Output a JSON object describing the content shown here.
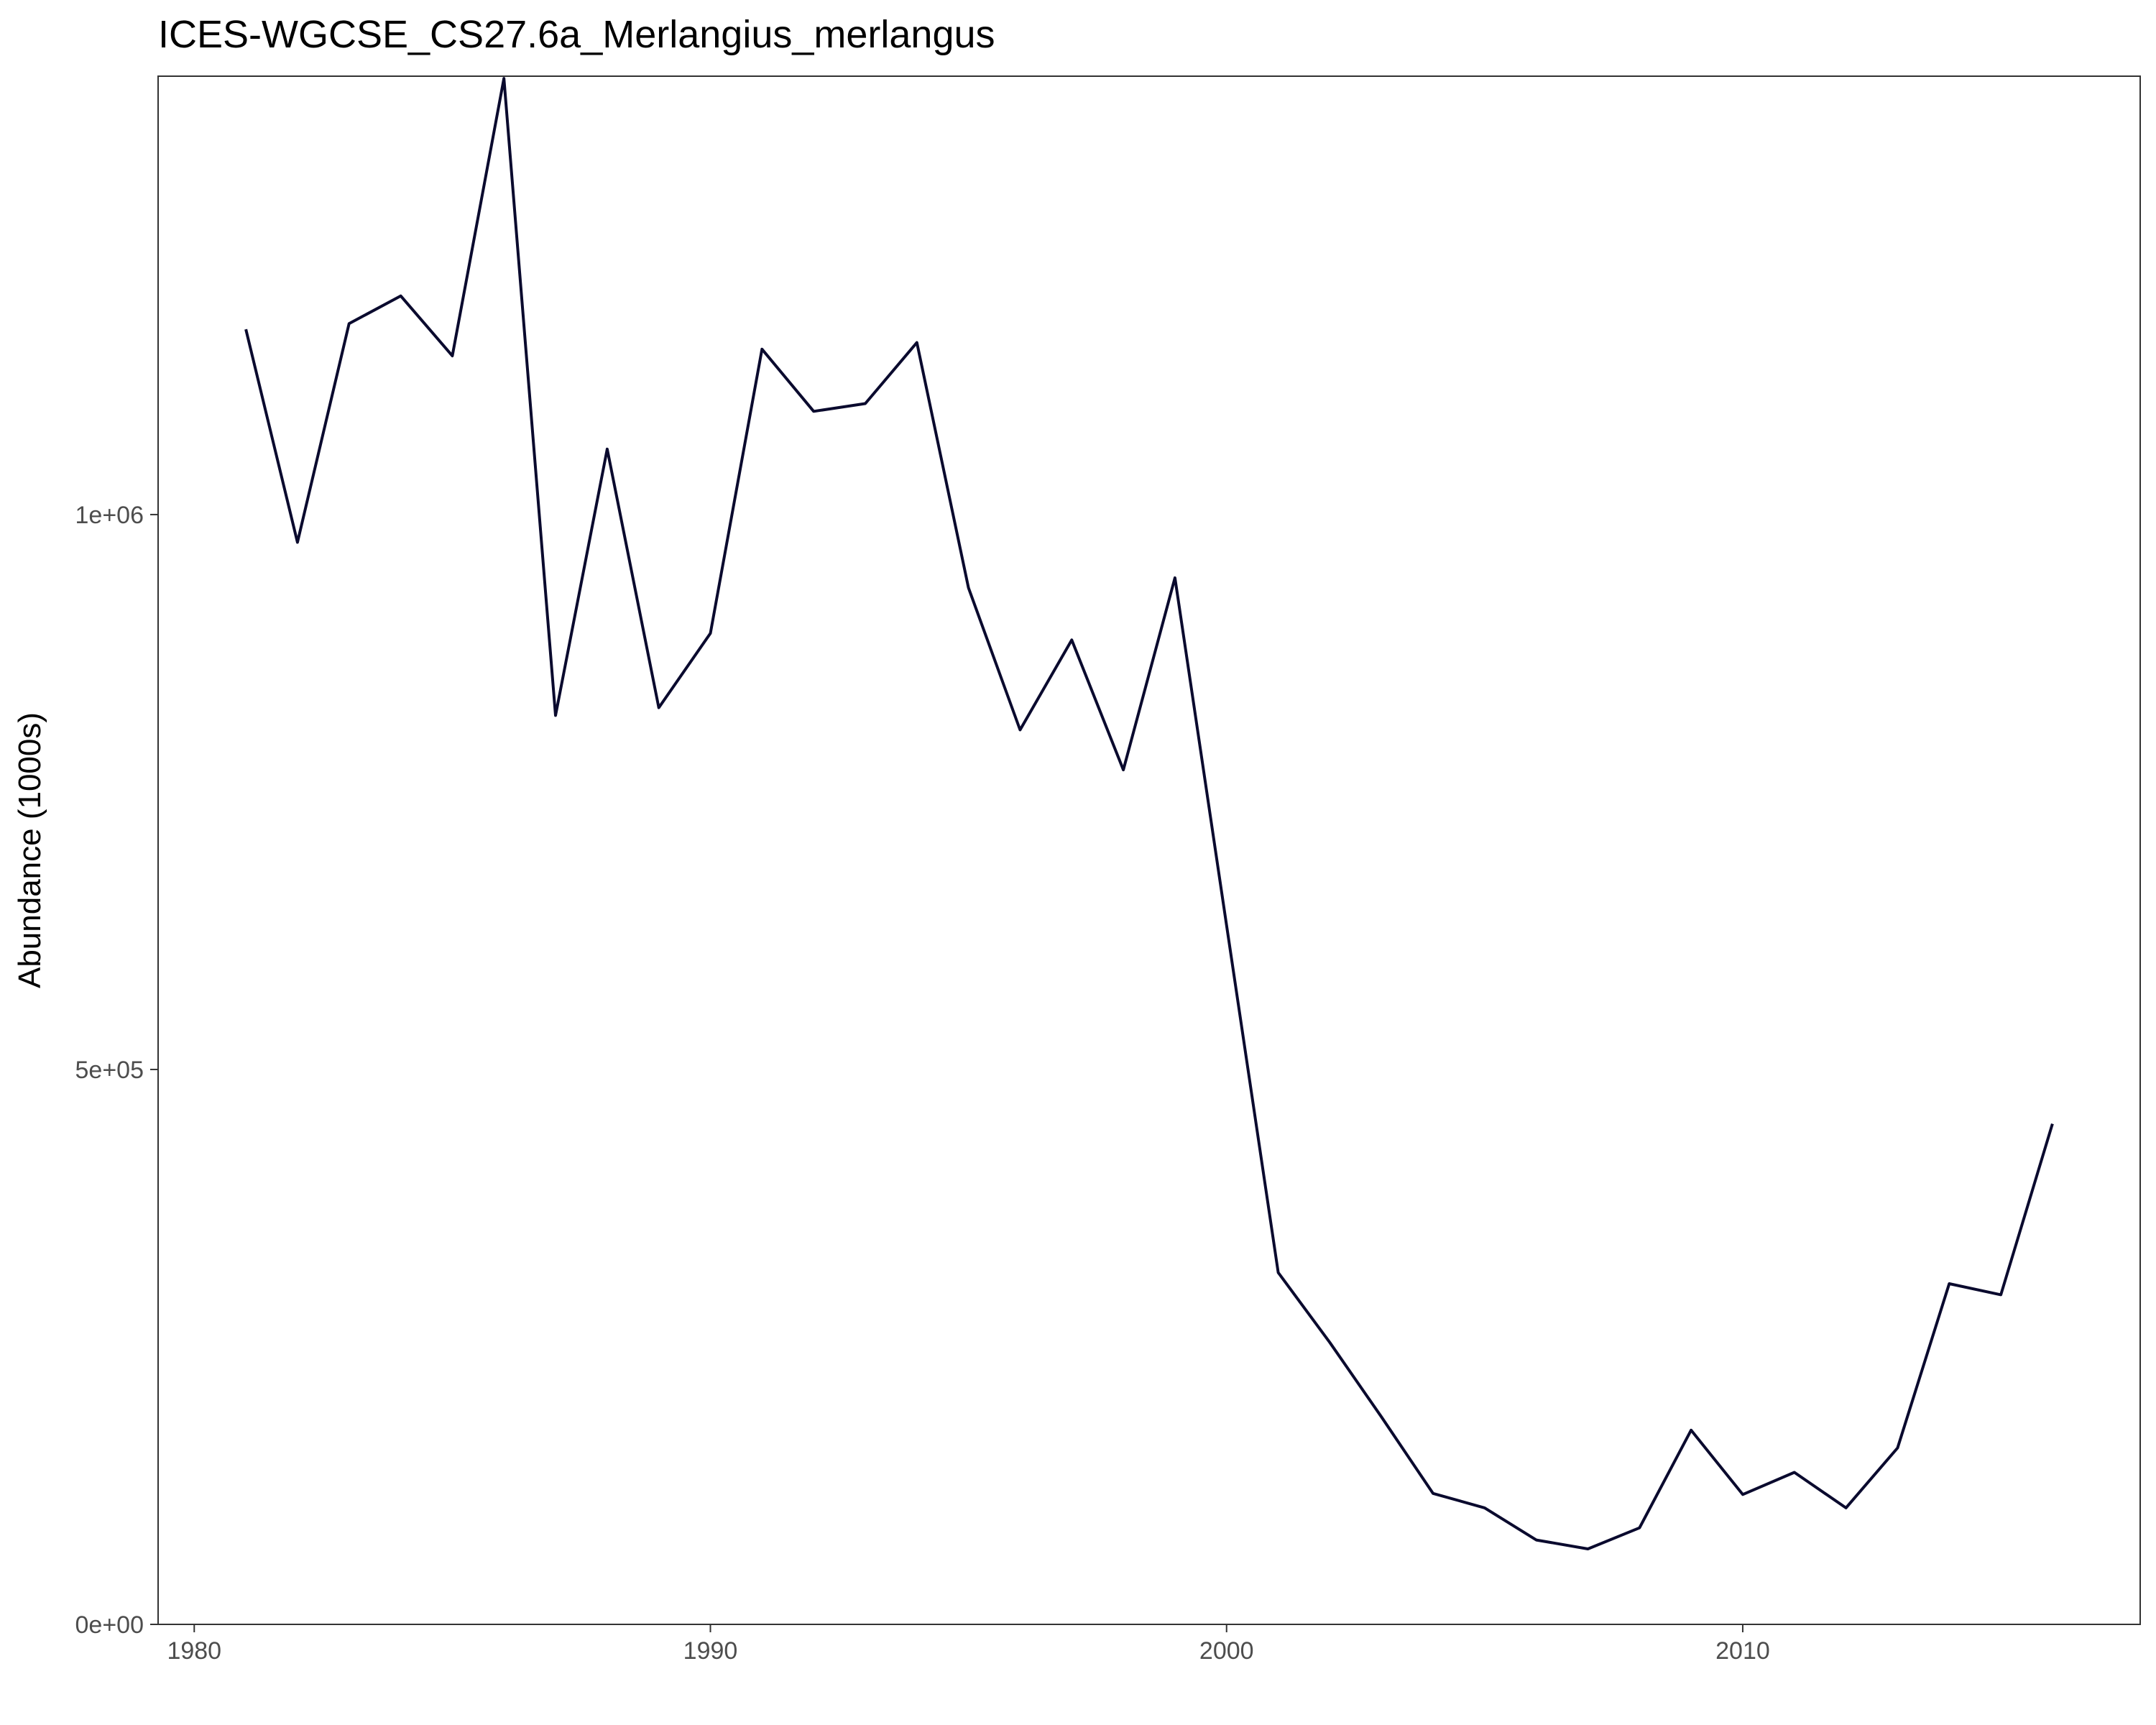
{
  "chart_data": {
    "type": "line",
    "title": "ICES-WGCSE_CS27.6a_Merlangius_merlangus",
    "xlabel": "",
    "ylabel": "Abundance (1000s)",
    "xlim": [
      1979.3,
      2017.7
    ],
    "ylim": [
      0,
      1395000
    ],
    "x_ticks": [
      {
        "value": 1980,
        "label": "1980"
      },
      {
        "value": 1990,
        "label": "1990"
      },
      {
        "value": 2000,
        "label": "2000"
      },
      {
        "value": 2010,
        "label": "2010"
      }
    ],
    "y_ticks": [
      {
        "value": 0,
        "label": "0e+00"
      },
      {
        "value": 500000,
        "label": "5e+05"
      },
      {
        "value": 1000000,
        "label": "1e+06"
      }
    ],
    "grid": false,
    "legend": "none",
    "line_color": "#0a0a2e",
    "series": [
      {
        "x": [
          1981,
          1982,
          1983,
          1984,
          1985,
          1986,
          1987,
          1988,
          1989,
          1990,
          1991,
          1992,
          1993,
          1994,
          1995,
          1996,
          1997,
          1998,
          1999,
          2000,
          2001,
          2002,
          2003,
          2004,
          2005,
          2006,
          2007,
          2008,
          2009,
          2010,
          2011,
          2012,
          2013,
          2014,
          2015,
          2016
        ],
        "values": [
          1167000,
          975000,
          1172000,
          1197000,
          1143000,
          1393000,
          819000,
          1059000,
          826000,
          893000,
          1149000,
          1093000,
          1100000,
          1155000,
          934000,
          806000,
          887000,
          770000,
          943000,
          630000,
          317000,
          254000,
          187000,
          118000,
          105000,
          76000,
          68000,
          87000,
          175000,
          117000,
          137000,
          105000,
          159000,
          307000,
          297000,
          451000
        ]
      }
    ]
  }
}
